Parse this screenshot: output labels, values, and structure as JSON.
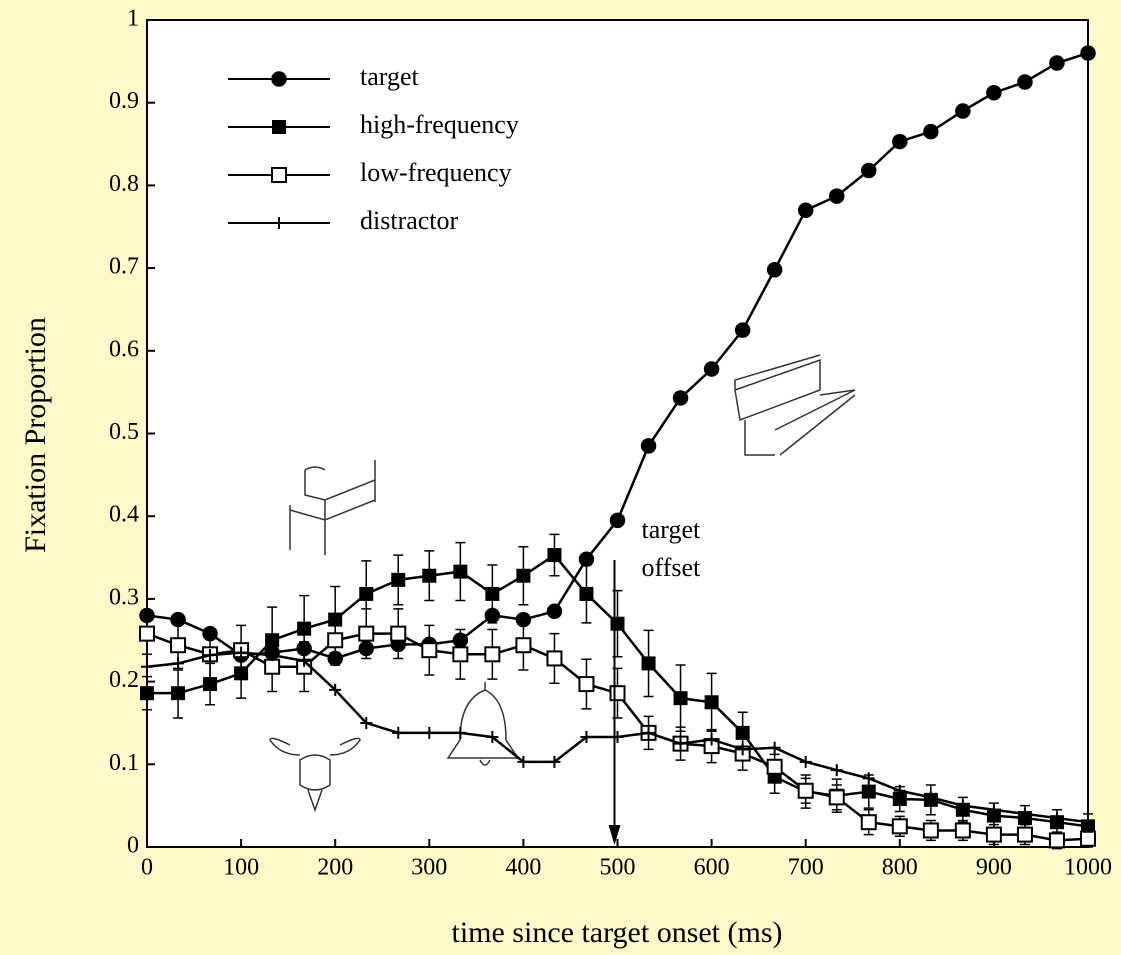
{
  "chart_data": {
    "type": "line",
    "xlabel": "time since target onset (ms)",
    "ylabel": "Fixation Proportion",
    "x": [
      0,
      33,
      67,
      100,
      133,
      167,
      200,
      233,
      267,
      300,
      333,
      367,
      400,
      433,
      467,
      500,
      533,
      567,
      600,
      633,
      667,
      700,
      733,
      767,
      800,
      833,
      867,
      900,
      933,
      967,
      1000
    ],
    "xlim": [
      0,
      1000
    ],
    "xticks": [
      0,
      100,
      200,
      300,
      400,
      500,
      600,
      700,
      800,
      900,
      1000
    ],
    "ylim": [
      0,
      1
    ],
    "yticks": [
      0,
      0.1,
      0.2,
      0.3,
      0.4,
      0.5,
      0.6,
      0.7,
      0.8,
      0.9,
      1
    ],
    "series": [
      {
        "name": "target",
        "color": "#000000",
        "marker": "circle-filled",
        "values": [
          0.28,
          0.275,
          0.258,
          0.232,
          0.235,
          0.24,
          0.228,
          0.24,
          0.245,
          0.245,
          0.25,
          0.28,
          0.275,
          0.285,
          0.348,
          0.395,
          0.485,
          0.543,
          0.578,
          0.625,
          0.698,
          0.77,
          0.787,
          0.818,
          0.853,
          0.865,
          0.89,
          0.912,
          0.925,
          0.948,
          0.96
        ]
      },
      {
        "name": "high-frequency",
        "color": "#000000",
        "marker": "square-filled",
        "values": [
          0.186,
          0.186,
          0.197,
          0.21,
          0.25,
          0.264,
          0.275,
          0.306,
          0.323,
          0.328,
          0.333,
          0.306,
          0.328,
          0.353,
          0.306,
          0.27,
          0.222,
          0.18,
          0.175,
          0.138,
          0.085,
          0.067,
          0.062,
          0.067,
          0.058,
          0.057,
          0.045,
          0.038,
          0.035,
          0.03,
          0.025
        ],
        "errors": [
          0.02,
          0.03,
          0.025,
          0.03,
          0.04,
          0.04,
          0.04,
          0.04,
          0.03,
          0.03,
          0.035,
          0.035,
          0.035,
          0.025,
          0.035,
          0.04,
          0.04,
          0.04,
          0.035,
          0.025,
          0.02,
          0.02,
          0.02,
          0.02,
          0.015,
          0.018,
          0.015,
          0.015,
          0.015,
          0.015,
          0.015
        ]
      },
      {
        "name": "low-frequency",
        "color": "#000000",
        "marker": "square-open",
        "values": [
          0.258,
          0.244,
          0.233,
          0.238,
          0.218,
          0.218,
          0.25,
          0.258,
          0.258,
          0.238,
          0.233,
          0.233,
          0.244,
          0.228,
          0.197,
          0.186,
          0.138,
          0.125,
          0.122,
          0.113,
          0.097,
          0.068,
          0.06,
          0.03,
          0.025,
          0.02,
          0.02,
          0.015,
          0.015,
          0.008,
          0.01
        ],
        "errors": [
          0.025,
          0.03,
          0.03,
          0.03,
          0.03,
          0.03,
          0.03,
          0.03,
          0.03,
          0.03,
          0.03,
          0.03,
          0.03,
          0.03,
          0.03,
          0.03,
          0.02,
          0.02,
          0.02,
          0.02,
          0.015,
          0.015,
          0.015,
          0.015,
          0.012,
          0.012,
          0.012,
          0.012,
          0.012,
          0.01,
          0.01
        ]
      },
      {
        "name": "distractor",
        "color": "#000000",
        "marker": "plus",
        "values": [
          0.218,
          0.222,
          0.232,
          0.235,
          0.232,
          0.225,
          0.19,
          0.15,
          0.138,
          0.138,
          0.138,
          0.133,
          0.103,
          0.103,
          0.133,
          0.133,
          0.138,
          0.125,
          0.13,
          0.118,
          0.12,
          0.103,
          0.093,
          0.083,
          0.068,
          0.06,
          0.05,
          0.045,
          0.04,
          0.035,
          0.03
        ]
      }
    ],
    "annotation": {
      "text": [
        "target",
        "offset"
      ],
      "x": 500
    }
  }
}
